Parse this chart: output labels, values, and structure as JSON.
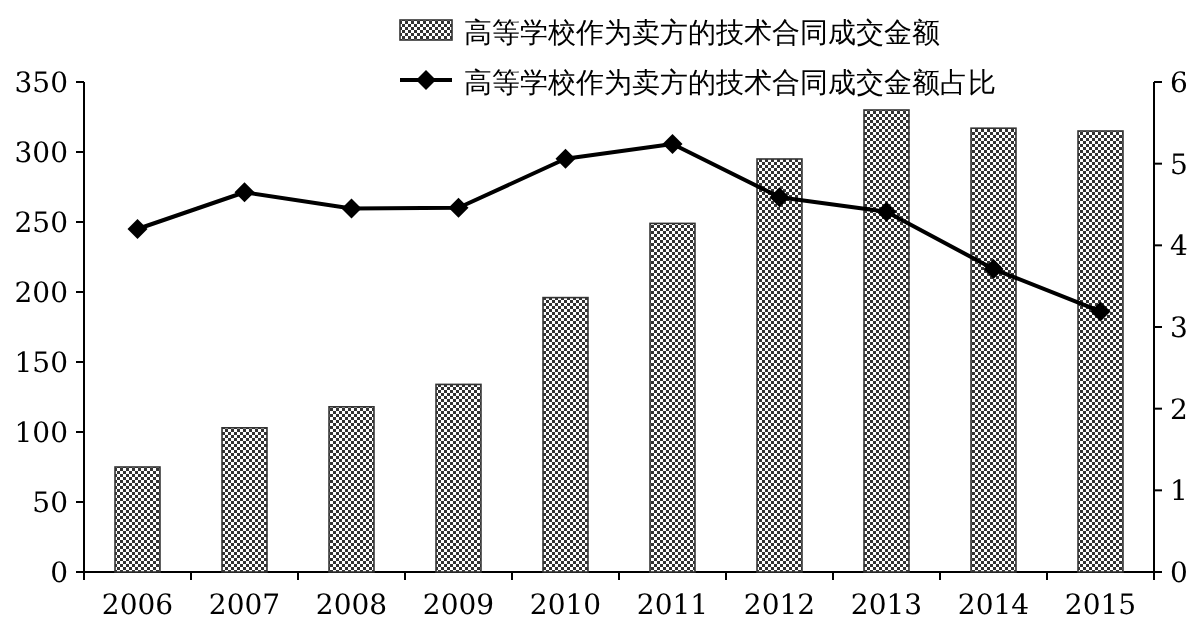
{
  "chart_data": {
    "type": "bar",
    "categories": [
      "2006",
      "2007",
      "2008",
      "2009",
      "2010",
      "2011",
      "2012",
      "2013",
      "2014",
      "2015"
    ],
    "series": [
      {
        "name": "高等学校作为卖方的技术合同成交金额",
        "color": "#333333",
        "values": [
          75,
          103,
          118,
          134,
          196,
          249,
          295,
          330,
          317,
          315
        ]
      },
      {
        "name": "高等学校作为卖方的技术合同成交金额占比",
        "type": "line",
        "axis": "y2",
        "color": "#000000",
        "marker": "diamond",
        "values": [
          4.2,
          4.65,
          4.45,
          4.46,
          5.06,
          5.24,
          4.59,
          4.41,
          3.71,
          3.19
        ]
      }
    ],
    "ylim": [
      0,
      350
    ],
    "yticks": [
      0,
      50,
      100,
      150,
      200,
      250,
      300,
      350
    ],
    "y2lim": [
      0,
      6
    ],
    "y2ticks": [
      0,
      1,
      2,
      3,
      4,
      5,
      6
    ],
    "legend": "top",
    "grid": false
  }
}
